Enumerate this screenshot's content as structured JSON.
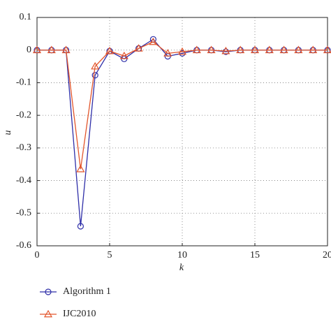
{
  "chart_data": {
    "type": "line",
    "xlabel": "k",
    "ylabel": "u",
    "x": [
      0,
      1,
      2,
      3,
      4,
      5,
      6,
      7,
      8,
      9,
      10,
      11,
      12,
      13,
      14,
      15,
      16,
      17,
      18,
      19,
      20
    ],
    "series": [
      {
        "name": "Algorithm 1",
        "color": "#2e2ea8",
        "marker": "circle",
        "values": [
          0,
          0,
          0,
          -0.54,
          -0.077,
          -0.003,
          -0.027,
          0.005,
          0.033,
          -0.019,
          -0.01,
          0,
          0,
          -0.005,
          0,
          0,
          0,
          0,
          0,
          0,
          0
        ]
      },
      {
        "name": "IJC2010",
        "color": "#e2552b",
        "marker": "triangle",
        "values": [
          0,
          0,
          0,
          -0.365,
          -0.05,
          -0.003,
          -0.018,
          0.005,
          0.025,
          -0.01,
          -0.005,
          0,
          0,
          -0.003,
          0,
          0,
          0,
          0,
          0,
          0,
          0
        ]
      }
    ],
    "xlim": [
      0,
      20
    ],
    "xticks": [
      0,
      5,
      10,
      15,
      20
    ],
    "ylim": [
      -0.6,
      0.1
    ],
    "yticks": [
      0.1,
      0,
      -0.1,
      -0.2,
      -0.3,
      -0.4,
      -0.5,
      -0.6
    ],
    "grid": true,
    "legend": "bottom"
  }
}
